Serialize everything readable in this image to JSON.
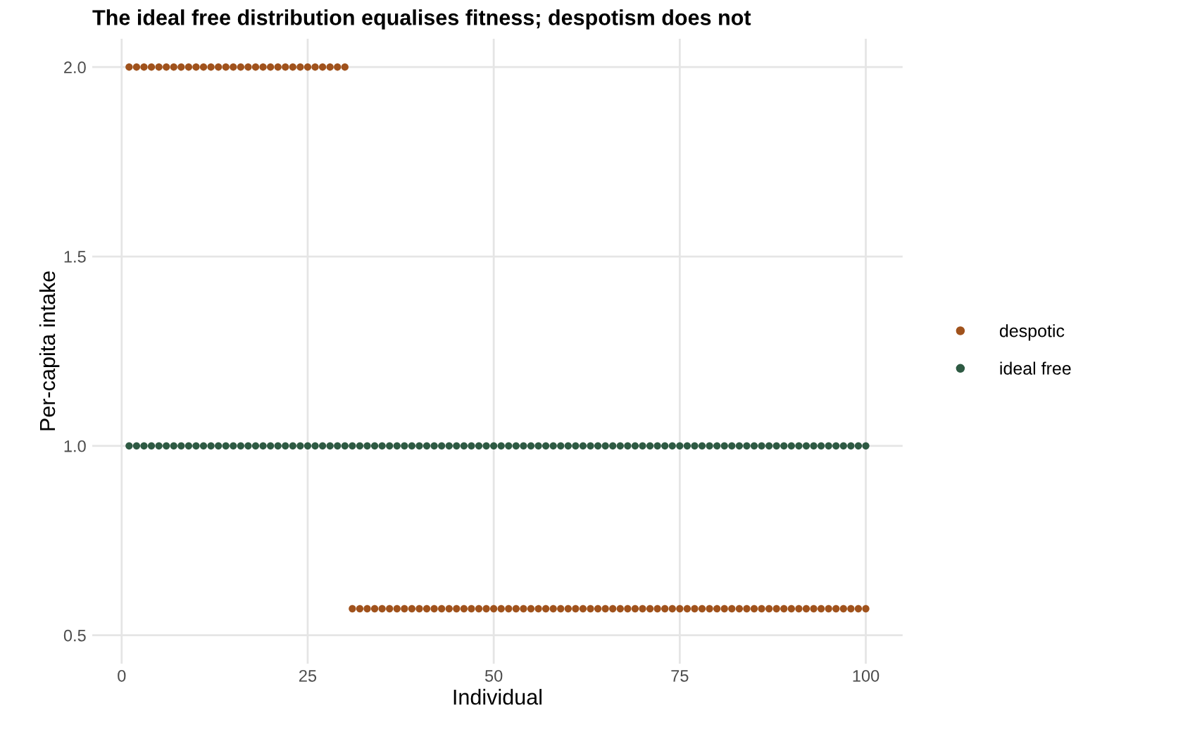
{
  "chart_data": {
    "type": "scatter",
    "title": "The ideal free distribution equalises fitness; despotism does not",
    "xlabel": "Individual",
    "ylabel": "Per-capita intake",
    "xlim": [
      -3.95,
      104.95
    ],
    "xticks": [
      0,
      25,
      50,
      75,
      100
    ],
    "ylim": [
      0.425,
      2.075
    ],
    "yticks": [
      {
        "value": 0.5,
        "label": "0.5"
      },
      {
        "value": 1.0,
        "label": "1.0"
      },
      {
        "value": 1.5,
        "label": "1.5"
      },
      {
        "value": 2.0,
        "label": "2.0"
      }
    ],
    "grid": true,
    "legend": "right",
    "marker": "circle",
    "series": [
      {
        "name": "despotic",
        "color": "#a0521c",
        "x": [
          1,
          2,
          3,
          4,
          5,
          6,
          7,
          8,
          9,
          10,
          11,
          12,
          13,
          14,
          15,
          16,
          17,
          18,
          19,
          20,
          21,
          22,
          23,
          24,
          25,
          26,
          27,
          28,
          29,
          30,
          31,
          32,
          33,
          34,
          35,
          36,
          37,
          38,
          39,
          40,
          41,
          42,
          43,
          44,
          45,
          46,
          47,
          48,
          49,
          50,
          51,
          52,
          53,
          54,
          55,
          56,
          57,
          58,
          59,
          60,
          61,
          62,
          63,
          64,
          65,
          66,
          67,
          68,
          69,
          70,
          71,
          72,
          73,
          74,
          75,
          76,
          77,
          78,
          79,
          80,
          81,
          82,
          83,
          84,
          85,
          86,
          87,
          88,
          89,
          90,
          91,
          92,
          93,
          94,
          95,
          96,
          97,
          98,
          99,
          100
        ],
        "values": [
          2,
          2,
          2,
          2,
          2,
          2,
          2,
          2,
          2,
          2,
          2,
          2,
          2,
          2,
          2,
          2,
          2,
          2,
          2,
          2,
          2,
          2,
          2,
          2,
          2,
          2,
          2,
          2,
          2,
          2,
          0.57,
          0.57,
          0.57,
          0.57,
          0.57,
          0.57,
          0.57,
          0.57,
          0.57,
          0.57,
          0.57,
          0.57,
          0.57,
          0.57,
          0.57,
          0.57,
          0.57,
          0.57,
          0.57,
          0.57,
          0.57,
          0.57,
          0.57,
          0.57,
          0.57,
          0.57,
          0.57,
          0.57,
          0.57,
          0.57,
          0.57,
          0.57,
          0.57,
          0.57,
          0.57,
          0.57,
          0.57,
          0.57,
          0.57,
          0.57,
          0.57,
          0.57,
          0.57,
          0.57,
          0.57,
          0.57,
          0.57,
          0.57,
          0.57,
          0.57,
          0.57,
          0.57,
          0.57,
          0.57,
          0.57,
          0.57,
          0.57,
          0.57,
          0.57,
          0.57,
          0.57,
          0.57,
          0.57,
          0.57,
          0.57,
          0.57,
          0.57,
          0.57,
          0.57,
          0.57
        ]
      },
      {
        "name": "ideal free",
        "color": "#2e5a43",
        "x": [
          1,
          2,
          3,
          4,
          5,
          6,
          7,
          8,
          9,
          10,
          11,
          12,
          13,
          14,
          15,
          16,
          17,
          18,
          19,
          20,
          21,
          22,
          23,
          24,
          25,
          26,
          27,
          28,
          29,
          30,
          31,
          32,
          33,
          34,
          35,
          36,
          37,
          38,
          39,
          40,
          41,
          42,
          43,
          44,
          45,
          46,
          47,
          48,
          49,
          50,
          51,
          52,
          53,
          54,
          55,
          56,
          57,
          58,
          59,
          60,
          61,
          62,
          63,
          64,
          65,
          66,
          67,
          68,
          69,
          70,
          71,
          72,
          73,
          74,
          75,
          76,
          77,
          78,
          79,
          80,
          81,
          82,
          83,
          84,
          85,
          86,
          87,
          88,
          89,
          90,
          91,
          92,
          93,
          94,
          95,
          96,
          97,
          98,
          99,
          100
        ],
        "values": [
          1,
          1,
          1,
          1,
          1,
          1,
          1,
          1,
          1,
          1,
          1,
          1,
          1,
          1,
          1,
          1,
          1,
          1,
          1,
          1,
          1,
          1,
          1,
          1,
          1,
          1,
          1,
          1,
          1,
          1,
          1,
          1,
          1,
          1,
          1,
          1,
          1,
          1,
          1,
          1,
          1,
          1,
          1,
          1,
          1,
          1,
          1,
          1,
          1,
          1,
          1,
          1,
          1,
          1,
          1,
          1,
          1,
          1,
          1,
          1,
          1,
          1,
          1,
          1,
          1,
          1,
          1,
          1,
          1,
          1,
          1,
          1,
          1,
          1,
          1,
          1,
          1,
          1,
          1,
          1,
          1,
          1,
          1,
          1,
          1,
          1,
          1,
          1,
          1,
          1,
          1,
          1,
          1,
          1,
          1,
          1,
          1,
          1,
          1,
          1
        ]
      }
    ]
  }
}
